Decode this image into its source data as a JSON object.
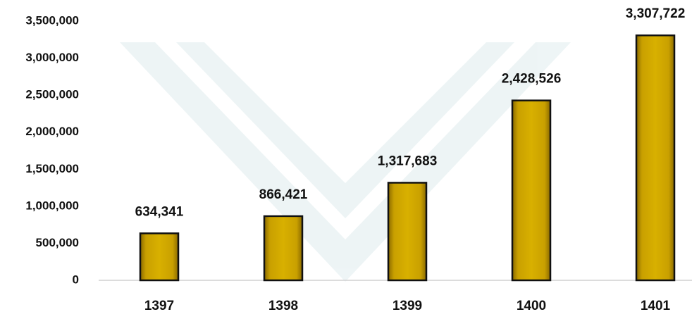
{
  "chart_data": {
    "type": "bar",
    "categories": [
      "1397",
      "1398",
      "1399",
      "1400",
      "1401"
    ],
    "values": [
      634341,
      866421,
      1317683,
      2428526,
      3307722
    ],
    "value_labels": [
      "634,341",
      "866,421",
      "1,317,683",
      "2,428,526",
      "3,307,722"
    ],
    "color": "#c9a000",
    "ylim": [
      0,
      3500000
    ],
    "yticks": [
      0,
      {
        "value": 500000,
        "label": "500,000"
      },
      {
        "value": 1000000,
        "label": "1,000,000"
      },
      {
        "value": 1500000,
        "label": "1,500,000"
      },
      {
        "value": 2000000,
        "label": "2,000,000"
      },
      {
        "value": 2500000,
        "label": "2,500,000"
      },
      {
        "value": 3000000,
        "label": "3,000,000"
      },
      {
        "value": 3500000,
        "label": "3,500,000"
      }
    ],
    "grid": false
  }
}
